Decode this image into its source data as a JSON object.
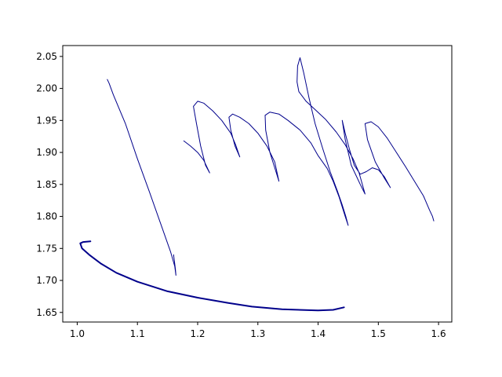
{
  "chart_data": {
    "type": "line",
    "title": "",
    "xlabel": "",
    "ylabel": "",
    "xlim": [
      0.976,
      1.622
    ],
    "ylim": [
      2.067,
      1.635
    ],
    "y_inverted": true,
    "grid": false,
    "legend": "none",
    "x_ticks": [
      {
        "value": 1.0,
        "label": "1.0"
      },
      {
        "value": 1.1,
        "label": "1.1"
      },
      {
        "value": 1.2,
        "label": "1.2"
      },
      {
        "value": 1.3,
        "label": "1.3"
      },
      {
        "value": 1.4,
        "label": "1.4"
      },
      {
        "value": 1.5,
        "label": "1.5"
      },
      {
        "value": 1.6,
        "label": "1.6"
      }
    ],
    "y_ticks": [
      {
        "value": 1.65,
        "label": "1.65"
      },
      {
        "value": 1.7,
        "label": "1.70"
      },
      {
        "value": 1.75,
        "label": "1.75"
      },
      {
        "value": 1.8,
        "label": "1.80"
      },
      {
        "value": 1.85,
        "label": "1.85"
      },
      {
        "value": 1.9,
        "label": "1.90"
      },
      {
        "value": 1.95,
        "label": "1.95"
      },
      {
        "value": 2.0,
        "label": "2.00"
      },
      {
        "value": 2.05,
        "label": "2.05"
      }
    ],
    "series": [
      {
        "color": "#00008b",
        "width": 2,
        "points": [
          [
            1.443,
            1.658
          ],
          [
            1.425,
            1.654
          ],
          [
            1.4,
            1.653
          ],
          [
            1.34,
            1.655
          ],
          [
            1.29,
            1.659
          ],
          [
            1.25,
            1.665
          ],
          [
            1.2,
            1.673
          ],
          [
            1.15,
            1.683
          ],
          [
            1.1,
            1.698
          ],
          [
            1.065,
            1.712
          ],
          [
            1.04,
            1.726
          ],
          [
            1.02,
            1.74
          ],
          [
            1.008,
            1.75
          ],
          [
            1.005,
            1.758
          ],
          [
            1.01,
            1.76
          ],
          [
            1.022,
            1.761
          ]
        ]
      },
      {
        "color": "#00008b",
        "width": 1,
        "points": [
          [
            1.05,
            2.014
          ],
          [
            1.053,
            2.008
          ],
          [
            1.06,
            1.99
          ],
          [
            1.08,
            1.945
          ],
          [
            1.1,
            1.89
          ],
          [
            1.12,
            1.838
          ],
          [
            1.14,
            1.785
          ],
          [
            1.155,
            1.745
          ],
          [
            1.162,
            1.722
          ],
          [
            1.164,
            1.708
          ],
          [
            1.163,
            1.718
          ],
          [
            1.16,
            1.74
          ]
        ]
      },
      {
        "color": "#00008b",
        "width": 1,
        "points": [
          [
            1.177,
            1.918
          ],
          [
            1.188,
            1.91
          ],
          [
            1.2,
            1.9
          ],
          [
            1.21,
            1.888
          ],
          [
            1.22,
            1.868
          ],
          [
            1.213,
            1.88
          ],
          [
            1.205,
            1.91
          ],
          [
            1.198,
            1.945
          ],
          [
            1.193,
            1.972
          ],
          [
            1.2,
            1.98
          ],
          [
            1.21,
            1.977
          ],
          [
            1.225,
            1.965
          ],
          [
            1.24,
            1.95
          ],
          [
            1.255,
            1.93
          ],
          [
            1.263,
            1.912
          ],
          [
            1.27,
            1.893
          ],
          [
            1.262,
            1.91
          ],
          [
            1.255,
            1.935
          ],
          [
            1.252,
            1.955
          ],
          [
            1.258,
            1.96
          ],
          [
            1.27,
            1.955
          ],
          [
            1.285,
            1.945
          ],
          [
            1.3,
            1.93
          ],
          [
            1.315,
            1.91
          ],
          [
            1.328,
            1.885
          ],
          [
            1.335,
            1.855
          ],
          [
            1.33,
            1.87
          ],
          [
            1.32,
            1.9
          ],
          [
            1.313,
            1.935
          ],
          [
            1.312,
            1.958
          ],
          [
            1.32,
            1.963
          ],
          [
            1.335,
            1.96
          ],
          [
            1.35,
            1.95
          ],
          [
            1.37,
            1.935
          ],
          [
            1.388,
            1.915
          ],
          [
            1.4,
            1.895
          ],
          [
            1.415,
            1.875
          ],
          [
            1.425,
            1.855
          ],
          [
            1.435,
            1.83
          ],
          [
            1.445,
            1.8
          ],
          [
            1.45,
            1.786
          ],
          [
            1.446,
            1.8
          ],
          [
            1.44,
            1.818
          ],
          [
            1.432,
            1.84
          ],
          [
            1.42,
            1.87
          ],
          [
            1.408,
            1.905
          ],
          [
            1.395,
            1.945
          ],
          [
            1.385,
            1.985
          ],
          [
            1.376,
            2.025
          ],
          [
            1.37,
            2.048
          ],
          [
            1.366,
            2.035
          ],
          [
            1.365,
            2.01
          ],
          [
            1.368,
            1.995
          ],
          [
            1.38,
            1.98
          ],
          [
            1.395,
            1.967
          ],
          [
            1.412,
            1.952
          ],
          [
            1.43,
            1.932
          ],
          [
            1.445,
            1.912
          ],
          [
            1.458,
            1.89
          ],
          [
            1.468,
            1.868
          ],
          [
            1.478,
            1.835
          ],
          [
            1.47,
            1.85
          ],
          [
            1.455,
            1.88
          ],
          [
            1.445,
            1.92
          ],
          [
            1.44,
            1.95
          ],
          [
            1.445,
            1.93
          ],
          [
            1.452,
            1.905
          ],
          [
            1.46,
            1.88
          ],
          [
            1.47,
            1.866
          ],
          [
            1.48,
            1.87
          ],
          [
            1.49,
            1.876
          ],
          [
            1.5,
            1.873
          ],
          [
            1.51,
            1.862
          ],
          [
            1.52,
            1.845
          ],
          [
            1.51,
            1.86
          ],
          [
            1.495,
            1.885
          ],
          [
            1.482,
            1.92
          ],
          [
            1.478,
            1.945
          ],
          [
            1.488,
            1.948
          ],
          [
            1.5,
            1.94
          ],
          [
            1.515,
            1.922
          ],
          [
            1.53,
            1.9
          ],
          [
            1.545,
            1.878
          ],
          [
            1.56,
            1.855
          ],
          [
            1.575,
            1.832
          ],
          [
            1.585,
            1.81
          ],
          [
            1.59,
            1.8
          ],
          [
            1.592,
            1.793
          ]
        ]
      }
    ]
  }
}
